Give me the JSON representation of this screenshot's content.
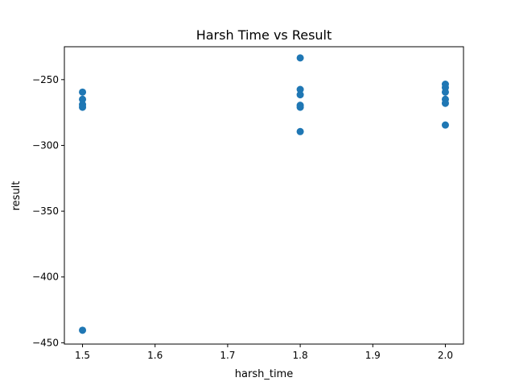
{
  "chart_data": {
    "type": "scatter",
    "title": "Harsh Time vs Result",
    "xlabel": "harsh_time",
    "ylabel": "result",
    "xlim": [
      1.475,
      2.025
    ],
    "ylim": [
      -451,
      -225
    ],
    "x_ticks": [
      1.5,
      1.6,
      1.7,
      1.8,
      1.9,
      2.0
    ],
    "x_tick_labels": [
      "1.5",
      "1.6",
      "1.7",
      "1.8",
      "1.9",
      "2.0"
    ],
    "y_ticks": [
      -450,
      -400,
      -350,
      -300,
      -250
    ],
    "y_tick_labels": [
      "−450",
      "−400",
      "−350",
      "−300",
      "−250"
    ],
    "grid": false,
    "legend": "none",
    "series": [
      {
        "color": "#1f77b4",
        "points": [
          {
            "x": 1.5,
            "y": -259.5
          },
          {
            "x": 1.5,
            "y": -265
          },
          {
            "x": 1.5,
            "y": -269
          },
          {
            "x": 1.5,
            "y": -271
          },
          {
            "x": 1.5,
            "y": -440.5
          },
          {
            "x": 1.8,
            "y": -233.5
          },
          {
            "x": 1.8,
            "y": -257.5
          },
          {
            "x": 1.8,
            "y": -261.5
          },
          {
            "x": 1.8,
            "y": -269.5
          },
          {
            "x": 1.8,
            "y": -271
          },
          {
            "x": 1.8,
            "y": -289.5
          },
          {
            "x": 2.0,
            "y": -253.5
          },
          {
            "x": 2.0,
            "y": -256
          },
          {
            "x": 2.0,
            "y": -259.5
          },
          {
            "x": 2.0,
            "y": -265
          },
          {
            "x": 2.0,
            "y": -268
          },
          {
            "x": 2.0,
            "y": -284.5
          }
        ]
      }
    ]
  }
}
